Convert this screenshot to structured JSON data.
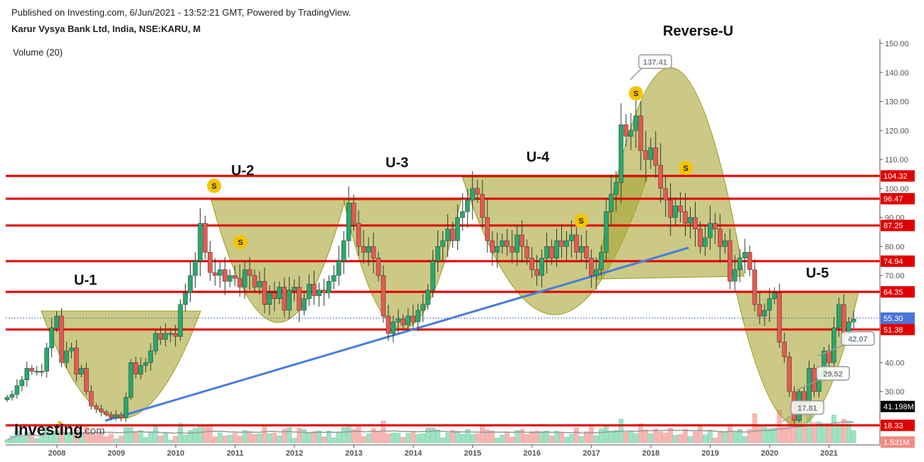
{
  "header": {
    "published": "Published on Investing.com, 6/Jun/2021 - 13:52:21 GMT, Powered by TradingView.",
    "title": "Karur Vysya Bank Ltd, India, NSE:KARU, M",
    "volume_label": "Volume (20)"
  },
  "logo": {
    "text": "Investing",
    "suffix": ".com"
  },
  "colors": {
    "up": "#26a96c",
    "down": "#e65a4f",
    "level": "#e00000",
    "pattern": "#a8a533",
    "trend": "#4a7fd8",
    "current": "#4a74d8"
  },
  "chart_data": {
    "type": "candlestick",
    "title": "Karur Vysya Bank Ltd, India, NSE:KARU, M",
    "start": "2007-03",
    "closes": [
      28,
      29,
      32,
      34,
      38,
      37,
      37,
      37,
      45,
      52,
      56,
      40,
      44,
      45,
      36,
      38,
      30,
      25,
      24,
      23,
      22,
      21,
      22,
      21,
      28,
      40,
      36,
      39,
      40,
      44,
      50,
      48,
      50,
      50,
      49,
      60,
      64,
      70,
      75,
      88,
      78,
      71,
      70,
      72,
      68,
      70,
      69,
      66,
      72,
      70,
      66,
      68,
      60,
      64,
      62,
      66,
      58,
      65,
      66,
      58,
      62,
      67,
      63,
      65,
      64,
      68,
      70,
      75,
      82,
      95,
      88,
      80,
      78,
      80,
      76,
      70,
      56,
      50,
      54,
      55,
      53,
      56,
      54,
      58,
      60,
      65,
      75,
      80,
      82,
      86,
      82,
      90,
      92,
      96,
      100,
      98,
      90,
      82,
      78,
      80,
      82,
      80,
      78,
      84,
      80,
      76,
      72,
      70,
      76,
      80,
      76,
      82,
      80,
      82,
      84,
      78,
      80,
      76,
      70,
      72,
      78,
      92,
      98,
      102,
      122,
      118,
      120,
      125,
      113,
      110,
      114,
      108,
      100,
      96,
      90,
      94,
      92,
      88,
      90,
      86,
      80,
      83,
      88,
      86,
      80,
      82,
      68,
      72,
      76,
      78,
      72,
      60,
      56,
      58,
      62,
      64,
      47,
      42,
      30,
      20,
      30,
      26,
      38,
      30,
      36,
      44,
      40,
      52,
      60,
      50,
      54,
      55
    ],
    "x_ticks": [
      "2008",
      "2009",
      "2010",
      "2011",
      "2012",
      "2013",
      "2014",
      "2015",
      "2016",
      "2017",
      "2018",
      "2019",
      "2020",
      "2021"
    ],
    "y_ticks": [
      "150.00",
      "140.00",
      "130.00",
      "120.00",
      "110.00",
      "100.00",
      "90.00",
      "80.00",
      "70.00",
      "40.00",
      "30.00"
    ],
    "ylim": [
      15,
      150
    ],
    "levels": [
      "104.32",
      "96.47",
      "87.25",
      "74.94",
      "64.35",
      "51.38",
      "18.33"
    ],
    "current_price": "55.30",
    "volume_last": "41.198M",
    "volume_min_label": "1.531M",
    "callouts": [
      "137.41",
      "42.07",
      "29.52",
      "17.81"
    ],
    "annotations": [
      "U-1",
      "U-2",
      "U-3",
      "U-4",
      "Reverse-U",
      "U-5"
    ],
    "signal_marker": "S"
  }
}
